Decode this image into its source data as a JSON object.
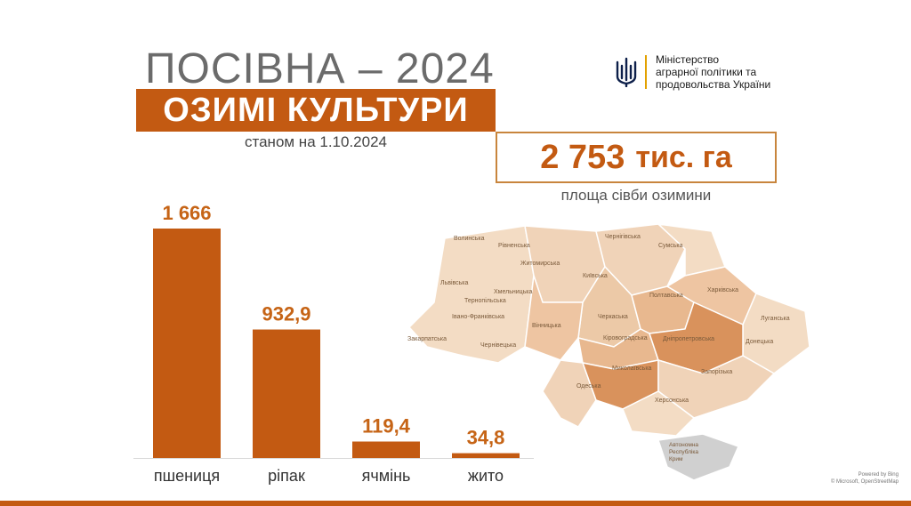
{
  "header": {
    "title": "ПОСІВНА – 2024",
    "subtitle": "ОЗИМІ КУЛЬТУРИ",
    "as_of": "станом на 1.10.2024"
  },
  "ministry": {
    "line1": "Міністерство",
    "line2": "аграрної політики та",
    "line3": "продовольства України"
  },
  "total": {
    "value": "2 753",
    "unit": "тис. га",
    "caption": "площа сівби озимини"
  },
  "map": {
    "regions": [
      "Волинська",
      "Рівненська",
      "Чернігівська",
      "Сумська",
      "Житомирська",
      "Київська",
      "Львівська",
      "Хмельницька",
      "Тернопільська",
      "Полтавська",
      "Харківська",
      "Івано-Франківська",
      "Вінницька",
      "Черкаська",
      "Луганська",
      "Закарпатська",
      "Чернівецька",
      "Кіровоградська",
      "Дніпропетровська",
      "Донецька",
      "Миколаївська",
      "Запорізька",
      "Одеська",
      "Херсонська",
      "Автономна Республіка Крим"
    ],
    "attribution_line1": "Powered by Bing",
    "attribution_line2": "© Microsoft, OpenStreetMap"
  },
  "chart_data": {
    "type": "bar",
    "categories": [
      "пшениця",
      "ріпак",
      "ячмінь",
      "жито"
    ],
    "values": [
      1666,
      932.9,
      119.4,
      34.8
    ],
    "value_labels": [
      "1 666",
      "932,9",
      "119,4",
      "34,8"
    ],
    "title": "",
    "xlabel": "",
    "ylabel": "",
    "ylim": [
      0,
      1666
    ],
    "grid": false,
    "legend": "none"
  },
  "colors": {
    "accent": "#c35a12",
    "value_text": "#c66416",
    "title_gray": "#6b6b6b",
    "ministry_blue": "#0057b7",
    "ministry_yellow": "#ffd500",
    "map_light": "#f3dcc4",
    "map_mid": "#e8b88f",
    "map_dark": "#d9925c",
    "crimea_gray": "#d0d0d0"
  },
  "icons": {
    "ministry_emblem": "trident-icon"
  }
}
